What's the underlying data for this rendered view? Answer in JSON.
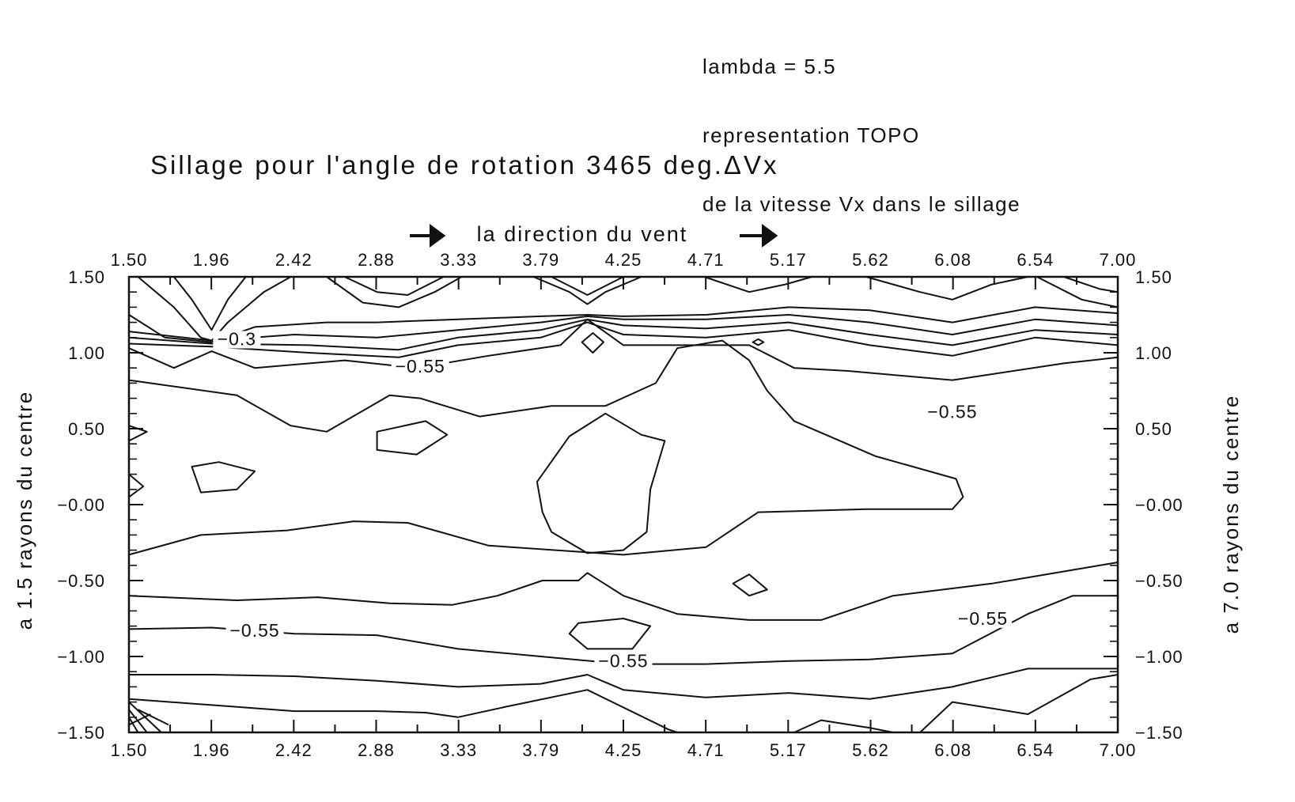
{
  "annotation": {
    "line1": "lambda = 5.5",
    "line2": "representation TOPO",
    "line3": "de la vitesse Vx dans le sillage"
  },
  "chart_data": {
    "type": "contour",
    "title": "Sillage pour l'angle de rotation 3465 deg.ΔVx",
    "top_axis_label": "la direction du vent",
    "ylabel_left": "a 1.5 rayons du centre",
    "ylabel_right": "a 7.0 rayons du centre",
    "xlim": [
      1.5,
      7.0
    ],
    "ylim": [
      -1.5,
      1.5
    ],
    "x_ticks": [
      "1.50",
      "1.96",
      "2.42",
      "2.88",
      "3.33",
      "3.79",
      "4.25",
      "4.71",
      "5.17",
      "5.62",
      "6.08",
      "6.54",
      "7.00"
    ],
    "y_ticks_left": [
      "1.50",
      "1.00",
      "0.50",
      "−0.00",
      "−0.50",
      "−1.00",
      "−1.50"
    ],
    "y_ticks_right": [
      "1.50",
      "1.00",
      "0.50",
      "−0.00",
      "−0.50",
      "−1.00",
      "−1.50"
    ],
    "contour_labels": [
      {
        "text": "−0.3",
        "x": 2.1,
        "y": 1.06
      },
      {
        "text": "−0.55",
        "x": 3.12,
        "y": 0.88
      },
      {
        "text": "−0.55",
        "x": 6.08,
        "y": 0.58
      },
      {
        "text": "−0.55",
        "x": 6.25,
        "y": -0.78
      },
      {
        "text": "−0.55",
        "x": 2.2,
        "y": -0.86
      },
      {
        "text": "−0.55",
        "x": 4.25,
        "y": -1.06
      }
    ],
    "contours": [
      {
        "closed": false,
        "pts": [
          [
            1.5,
            -0.33
          ],
          [
            1.9,
            -0.2
          ],
          [
            2.38,
            -0.17
          ],
          [
            2.75,
            -0.11
          ],
          [
            3.05,
            -0.12
          ],
          [
            3.5,
            -0.27
          ],
          [
            4.25,
            -0.33
          ],
          [
            4.71,
            -0.28
          ],
          [
            5.0,
            -0.05
          ],
          [
            5.6,
            -0.03
          ],
          [
            6.08,
            -0.03
          ],
          [
            6.14,
            0.05
          ],
          [
            6.1,
            0.17
          ],
          [
            5.65,
            0.32
          ],
          [
            5.2,
            0.55
          ],
          [
            5.05,
            0.75
          ],
          [
            4.95,
            0.95
          ],
          [
            4.8,
            1.08
          ],
          [
            4.55,
            1.03
          ],
          [
            4.43,
            0.8
          ],
          [
            4.15,
            0.65
          ],
          [
            3.85,
            0.65
          ],
          [
            3.45,
            0.58
          ],
          [
            3.12,
            0.7
          ],
          [
            2.95,
            0.72
          ],
          [
            2.6,
            0.48
          ],
          [
            2.4,
            0.52
          ],
          [
            2.1,
            0.72
          ],
          [
            1.5,
            0.82
          ]
        ]
      },
      {
        "closed": false,
        "pts": [
          [
            1.5,
            -0.6
          ],
          [
            2.1,
            -0.63
          ],
          [
            2.55,
            -0.61
          ],
          [
            2.95,
            -0.65
          ],
          [
            3.3,
            -0.66
          ],
          [
            3.55,
            -0.6
          ],
          [
            3.8,
            -0.5
          ],
          [
            4.0,
            -0.5
          ],
          [
            4.05,
            -0.45
          ],
          [
            4.25,
            -0.6
          ],
          [
            4.55,
            -0.72
          ],
          [
            4.95,
            -0.76
          ],
          [
            5.35,
            -0.76
          ],
          [
            5.75,
            -0.6
          ],
          [
            6.3,
            -0.52
          ],
          [
            6.7,
            -0.44
          ],
          [
            7.0,
            -0.38
          ]
        ]
      },
      {
        "closed": false,
        "pts": [
          [
            1.5,
            -0.82
          ],
          [
            1.96,
            -0.81
          ],
          [
            2.42,
            -0.85
          ],
          [
            2.88,
            -0.86
          ],
          [
            3.33,
            -0.95
          ],
          [
            3.79,
            -1.0
          ],
          [
            4.25,
            -1.05
          ],
          [
            4.71,
            -1.05
          ],
          [
            5.17,
            -1.03
          ],
          [
            5.62,
            -1.02
          ],
          [
            6.08,
            -0.98
          ],
          [
            6.5,
            -0.72
          ],
          [
            6.75,
            -0.6
          ],
          [
            7.0,
            -0.6
          ]
        ]
      },
      {
        "closed": false,
        "pts": [
          [
            1.5,
            -1.12
          ],
          [
            1.96,
            -1.12
          ],
          [
            2.42,
            -1.13
          ],
          [
            2.88,
            -1.16
          ],
          [
            3.33,
            -1.2
          ],
          [
            3.79,
            -1.18
          ],
          [
            4.05,
            -1.12
          ],
          [
            4.25,
            -1.22
          ],
          [
            4.71,
            -1.27
          ],
          [
            5.17,
            -1.24
          ],
          [
            5.62,
            -1.28
          ],
          [
            6.08,
            -1.2
          ],
          [
            6.5,
            -1.08
          ],
          [
            7.0,
            -1.08
          ]
        ]
      },
      {
        "closed": false,
        "pts": [
          [
            1.5,
            -1.28
          ],
          [
            1.96,
            -1.32
          ],
          [
            2.42,
            -1.36
          ],
          [
            2.88,
            -1.36
          ],
          [
            3.15,
            -1.37
          ],
          [
            3.33,
            -1.4
          ],
          [
            3.6,
            -1.33
          ],
          [
            4.05,
            -1.22
          ],
          [
            4.5,
            -1.48
          ],
          [
            4.55,
            -1.5
          ]
        ]
      },
      {
        "closed": false,
        "pts": [
          [
            5.2,
            -1.5
          ],
          [
            5.35,
            -1.42
          ],
          [
            5.62,
            -1.47
          ],
          [
            5.75,
            -1.5
          ]
        ]
      },
      {
        "closed": false,
        "pts": [
          [
            5.9,
            -1.5
          ],
          [
            6.08,
            -1.3
          ],
          [
            6.5,
            -1.38
          ],
          [
            6.85,
            -1.15
          ],
          [
            7.0,
            -1.12
          ]
        ]
      },
      {
        "closed": false,
        "pts": [
          [
            1.5,
            1.03
          ],
          [
            1.75,
            0.9
          ],
          [
            1.96,
            1.01
          ],
          [
            2.2,
            0.9
          ],
          [
            2.7,
            0.95
          ],
          [
            3.1,
            0.9
          ],
          [
            3.5,
            0.98
          ],
          [
            3.9,
            1.05
          ],
          [
            4.05,
            1.22
          ],
          [
            4.25,
            1.05
          ],
          [
            4.71,
            1.05
          ],
          [
            4.95,
            1.05
          ],
          [
            5.2,
            0.9
          ],
          [
            5.5,
            0.88
          ],
          [
            6.08,
            0.82
          ],
          [
            6.7,
            0.93
          ],
          [
            7.0,
            0.97
          ]
        ]
      },
      {
        "closed": false,
        "pts": [
          [
            1.5,
            1.06
          ],
          [
            1.96,
            1.04
          ],
          [
            2.5,
            1.0
          ],
          [
            3.0,
            0.97
          ],
          [
            3.33,
            1.05
          ],
          [
            3.79,
            1.1
          ],
          [
            4.05,
            1.2
          ],
          [
            4.25,
            1.12
          ],
          [
            4.71,
            1.1
          ],
          [
            5.17,
            1.15
          ],
          [
            5.62,
            1.05
          ],
          [
            6.08,
            0.98
          ],
          [
            6.54,
            1.1
          ],
          [
            7.0,
            1.05
          ]
        ]
      },
      {
        "closed": false,
        "pts": [
          [
            1.5,
            1.1
          ],
          [
            1.96,
            1.06
          ],
          [
            2.5,
            1.05
          ],
          [
            3.0,
            1.02
          ],
          [
            3.33,
            1.1
          ],
          [
            3.79,
            1.15
          ],
          [
            4.05,
            1.22
          ],
          [
            4.25,
            1.18
          ],
          [
            4.71,
            1.16
          ],
          [
            5.17,
            1.2
          ],
          [
            5.62,
            1.12
          ],
          [
            6.08,
            1.05
          ],
          [
            6.54,
            1.15
          ],
          [
            7.0,
            1.12
          ]
        ]
      },
      {
        "closed": false,
        "pts": [
          [
            1.5,
            1.14
          ],
          [
            1.96,
            1.08
          ],
          [
            2.42,
            1.12
          ],
          [
            2.88,
            1.1
          ],
          [
            3.33,
            1.15
          ],
          [
            3.79,
            1.2
          ],
          [
            4.05,
            1.24
          ],
          [
            4.25,
            1.22
          ],
          [
            4.71,
            1.22
          ],
          [
            5.17,
            1.25
          ],
          [
            5.62,
            1.2
          ],
          [
            6.08,
            1.12
          ],
          [
            6.54,
            1.22
          ],
          [
            7.0,
            1.18
          ]
        ]
      },
      {
        "closed": false,
        "pts": [
          [
            1.5,
            1.25
          ],
          [
            1.7,
            1.1
          ],
          [
            1.96,
            1.07
          ],
          [
            2.2,
            1.17
          ],
          [
            2.6,
            1.2
          ],
          [
            2.88,
            1.2
          ],
          [
            3.33,
            1.22
          ],
          [
            3.79,
            1.24
          ],
          [
            4.05,
            1.25
          ],
          [
            4.25,
            1.24
          ],
          [
            4.71,
            1.25
          ],
          [
            5.17,
            1.3
          ],
          [
            5.62,
            1.28
          ],
          [
            6.08,
            1.2
          ],
          [
            6.54,
            1.3
          ],
          [
            7.0,
            1.26
          ]
        ]
      },
      {
        "closed": false,
        "pts": [
          [
            1.55,
            1.5
          ],
          [
            1.75,
            1.3
          ],
          [
            1.9,
            1.1
          ],
          [
            1.96,
            1.08
          ],
          [
            2.05,
            1.2
          ],
          [
            2.25,
            1.4
          ],
          [
            2.4,
            1.5
          ]
        ]
      },
      {
        "closed": false,
        "pts": [
          [
            1.75,
            1.5
          ],
          [
            1.85,
            1.35
          ],
          [
            1.96,
            1.15
          ],
          [
            2.05,
            1.35
          ],
          [
            2.15,
            1.5
          ]
        ]
      },
      {
        "closed": false,
        "pts": [
          [
            2.6,
            1.5
          ],
          [
            2.8,
            1.33
          ],
          [
            3.0,
            1.3
          ],
          [
            3.2,
            1.4
          ],
          [
            3.35,
            1.5
          ]
        ]
      },
      {
        "closed": false,
        "pts": [
          [
            2.7,
            1.5
          ],
          [
            2.88,
            1.4
          ],
          [
            3.05,
            1.38
          ],
          [
            3.25,
            1.5
          ]
        ]
      },
      {
        "closed": false,
        "pts": [
          [
            3.75,
            1.5
          ],
          [
            3.95,
            1.4
          ],
          [
            4.05,
            1.32
          ],
          [
            4.15,
            1.4
          ],
          [
            4.35,
            1.5
          ]
        ]
      },
      {
        "closed": false,
        "pts": [
          [
            3.85,
            1.5
          ],
          [
            4.05,
            1.38
          ],
          [
            4.25,
            1.5
          ]
        ]
      },
      {
        "closed": false,
        "pts": [
          [
            4.7,
            1.5
          ],
          [
            4.95,
            1.4
          ],
          [
            5.15,
            1.45
          ],
          [
            5.3,
            1.5
          ]
        ]
      },
      {
        "closed": false,
        "pts": [
          [
            5.6,
            1.5
          ],
          [
            5.9,
            1.4
          ],
          [
            6.08,
            1.35
          ],
          [
            6.3,
            1.45
          ],
          [
            6.5,
            1.5
          ]
        ]
      },
      {
        "closed": false,
        "pts": [
          [
            6.55,
            1.5
          ],
          [
            6.8,
            1.35
          ],
          [
            7.0,
            1.3
          ]
        ]
      },
      {
        "closed": false,
        "pts": [
          [
            6.7,
            1.5
          ],
          [
            6.9,
            1.42
          ],
          [
            7.0,
            1.4
          ]
        ]
      },
      {
        "closed": true,
        "pts": [
          [
            3.77,
            0.15
          ],
          [
            3.95,
            0.45
          ],
          [
            4.15,
            0.6
          ],
          [
            4.35,
            0.46
          ],
          [
            4.48,
            0.42
          ],
          [
            4.4,
            0.1
          ],
          [
            4.38,
            -0.18
          ],
          [
            4.25,
            -0.3
          ],
          [
            4.05,
            -0.32
          ],
          [
            3.85,
            -0.18
          ],
          [
            3.8,
            -0.05
          ]
        ]
      },
      {
        "closed": true,
        "pts": [
          [
            2.88,
            0.48
          ],
          [
            3.15,
            0.55
          ],
          [
            3.27,
            0.46
          ],
          [
            3.1,
            0.33
          ],
          [
            2.88,
            0.36
          ]
        ]
      },
      {
        "closed": true,
        "pts": [
          [
            1.85,
            0.25
          ],
          [
            2.0,
            0.28
          ],
          [
            2.2,
            0.22
          ],
          [
            2.1,
            0.1
          ],
          [
            1.9,
            0.08
          ]
        ]
      },
      {
        "closed": true,
        "pts": [
          [
            4.0,
            -0.78
          ],
          [
            4.25,
            -0.75
          ],
          [
            4.4,
            -0.8
          ],
          [
            4.3,
            -0.95
          ],
          [
            4.05,
            -0.95
          ],
          [
            3.95,
            -0.85
          ]
        ]
      },
      {
        "closed": true,
        "pts": [
          [
            4.86,
            -0.52
          ],
          [
            4.95,
            -0.46
          ],
          [
            5.05,
            -0.56
          ],
          [
            4.95,
            -0.6
          ]
        ]
      },
      {
        "closed": true,
        "pts": [
          [
            4.02,
            1.07
          ],
          [
            4.08,
            1.13
          ],
          [
            4.14,
            1.07
          ],
          [
            4.08,
            1.0
          ]
        ]
      },
      {
        "closed": true,
        "pts": [
          [
            4.97,
            1.07
          ],
          [
            5.0,
            1.09
          ],
          [
            5.03,
            1.07
          ],
          [
            5.0,
            1.05
          ]
        ]
      },
      {
        "closed": true,
        "pts": [
          [
            1.5,
            0.52
          ],
          [
            1.6,
            0.48
          ],
          [
            1.5,
            0.42
          ]
        ]
      },
      {
        "closed": true,
        "pts": [
          [
            1.5,
            0.2
          ],
          [
            1.58,
            0.12
          ],
          [
            1.5,
            0.05
          ]
        ]
      },
      {
        "closed": false,
        "pts": [
          [
            1.5,
            -1.35
          ],
          [
            1.6,
            -1.5
          ]
        ]
      },
      {
        "closed": false,
        "pts": [
          [
            1.5,
            -1.4
          ],
          [
            1.55,
            -1.5
          ]
        ]
      },
      {
        "closed": false,
        "pts": [
          [
            1.5,
            -1.3
          ],
          [
            1.68,
            -1.5
          ]
        ]
      },
      {
        "closed": false,
        "pts": [
          [
            1.55,
            -1.35
          ],
          [
            1.72,
            -1.45
          ]
        ]
      },
      {
        "closed": false,
        "pts": [
          [
            1.5,
            -1.45
          ],
          [
            1.62,
            -1.38
          ]
        ]
      }
    ]
  }
}
